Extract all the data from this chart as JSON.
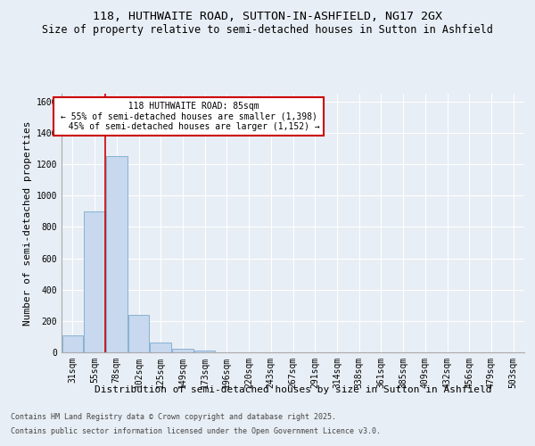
{
  "title_line1": "118, HUTHWAITE ROAD, SUTTON-IN-ASHFIELD, NG17 2GX",
  "title_line2": "Size of property relative to semi-detached houses in Sutton in Ashfield",
  "xlabel": "Distribution of semi-detached houses by size in Sutton in Ashfield",
  "ylabel": "Number of semi-detached properties",
  "categories": [
    "31sqm",
    "55sqm",
    "78sqm",
    "102sqm",
    "125sqm",
    "149sqm",
    "173sqm",
    "196sqm",
    "220sqm",
    "243sqm",
    "267sqm",
    "291sqm",
    "314sqm",
    "338sqm",
    "361sqm",
    "385sqm",
    "409sqm",
    "432sqm",
    "456sqm",
    "479sqm",
    "503sqm"
  ],
  "values": [
    110,
    900,
    1250,
    240,
    60,
    20,
    10,
    0,
    0,
    0,
    0,
    0,
    0,
    0,
    0,
    0,
    0,
    0,
    0,
    0,
    0
  ],
  "bar_color": "#c8d8ee",
  "bar_edge_color": "#7aaace",
  "property_label": "118 HUTHWAITE ROAD: 85sqm",
  "pct_smaller": 55,
  "pct_larger": 45,
  "count_smaller": 1398,
  "count_larger": 1152,
  "vline_color": "#cc0000",
  "annotation_box_edge_color": "#cc0000",
  "ylim": [
    0,
    1650
  ],
  "yticks": [
    0,
    200,
    400,
    600,
    800,
    1000,
    1200,
    1400,
    1600
  ],
  "background_color": "#e8eef5",
  "plot_bg_color": "#e8eef5",
  "grid_color": "#ffffff",
  "footer_line1": "Contains HM Land Registry data © Crown copyright and database right 2025.",
  "footer_line2": "Contains public sector information licensed under the Open Government Licence v3.0.",
  "title_fontsize": 9.5,
  "subtitle_fontsize": 8.5,
  "axis_label_fontsize": 8,
  "tick_fontsize": 7,
  "annotation_fontsize": 7,
  "footer_fontsize": 6
}
